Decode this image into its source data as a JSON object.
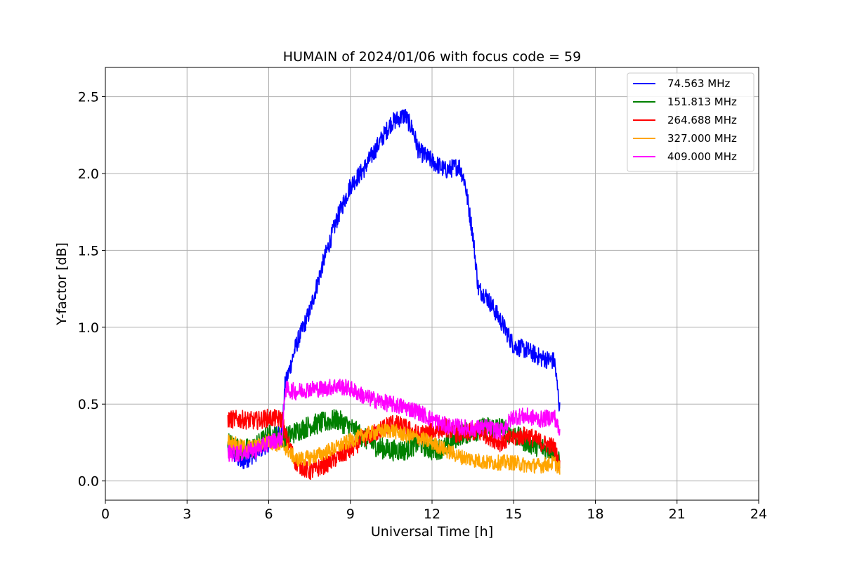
{
  "chart_data": {
    "type": "line",
    "title": "HUMAIN of 2024/01/06 with focus code = 59",
    "xlabel": "Universal Time [h]",
    "ylabel": "Y-factor [dB]",
    "xlim": [
      0,
      24
    ],
    "ylim": [
      -0.125,
      2.69
    ],
    "xticks": [
      0,
      3,
      6,
      9,
      12,
      15,
      18,
      21,
      24
    ],
    "yticks": [
      0.0,
      0.5,
      1.0,
      1.5,
      2.0,
      2.5
    ],
    "xtick_labels": [
      "0",
      "3",
      "6",
      "9",
      "12",
      "15",
      "18",
      "21",
      "24"
    ],
    "ytick_labels": [
      "0.0",
      "0.5",
      "1.0",
      "1.5",
      "2.0",
      "2.5"
    ],
    "grid": true,
    "legend_position": "top-right",
    "series": [
      {
        "name": " 74.563 MHz",
        "color": "#0000ff",
        "noise": 0.06,
        "points": [
          [
            4.5,
            0.22
          ],
          [
            5.0,
            0.12
          ],
          [
            5.5,
            0.18
          ],
          [
            6.0,
            0.25
          ],
          [
            6.5,
            0.33
          ],
          [
            6.6,
            0.62
          ],
          [
            7.0,
            0.88
          ],
          [
            7.5,
            1.1
          ],
          [
            8.0,
            1.42
          ],
          [
            8.5,
            1.7
          ],
          [
            9.0,
            1.92
          ],
          [
            9.5,
            2.03
          ],
          [
            10.0,
            2.18
          ],
          [
            10.5,
            2.33
          ],
          [
            11.0,
            2.38
          ],
          [
            11.3,
            2.28
          ],
          [
            11.5,
            2.15
          ],
          [
            12.0,
            2.08
          ],
          [
            12.5,
            2.02
          ],
          [
            13.0,
            2.05
          ],
          [
            13.2,
            1.95
          ],
          [
            13.5,
            1.6
          ],
          [
            13.7,
            1.25
          ],
          [
            14.0,
            1.2
          ],
          [
            14.5,
            1.05
          ],
          [
            15.0,
            0.88
          ],
          [
            15.5,
            0.85
          ],
          [
            16.0,
            0.8
          ],
          [
            16.5,
            0.78
          ],
          [
            16.7,
            0.45
          ]
        ]
      },
      {
        "name": "151.813 MHz",
        "color": "#008000",
        "noise": 0.07,
        "points": [
          [
            4.5,
            0.25
          ],
          [
            5.0,
            0.2
          ],
          [
            5.5,
            0.22
          ],
          [
            6.0,
            0.3
          ],
          [
            6.6,
            0.28
          ],
          [
            7.0,
            0.32
          ],
          [
            7.5,
            0.36
          ],
          [
            8.0,
            0.38
          ],
          [
            8.5,
            0.4
          ],
          [
            9.0,
            0.35
          ],
          [
            9.5,
            0.28
          ],
          [
            10.0,
            0.22
          ],
          [
            10.5,
            0.2
          ],
          [
            11.0,
            0.2
          ],
          [
            11.5,
            0.25
          ],
          [
            12.0,
            0.2
          ],
          [
            12.5,
            0.22
          ],
          [
            13.0,
            0.3
          ],
          [
            13.5,
            0.32
          ],
          [
            14.0,
            0.35
          ],
          [
            14.5,
            0.35
          ],
          [
            15.0,
            0.3
          ],
          [
            15.5,
            0.25
          ],
          [
            16.0,
            0.22
          ],
          [
            16.5,
            0.2
          ],
          [
            16.7,
            0.1
          ]
        ]
      },
      {
        "name": "264.688 MHz",
        "color": "#ff0000",
        "noise": 0.06,
        "points": [
          [
            4.5,
            0.4
          ],
          [
            5.0,
            0.4
          ],
          [
            5.5,
            0.39
          ],
          [
            6.0,
            0.41
          ],
          [
            6.5,
            0.4
          ],
          [
            6.6,
            0.3
          ],
          [
            7.0,
            0.12
          ],
          [
            7.5,
            0.06
          ],
          [
            8.0,
            0.1
          ],
          [
            8.5,
            0.15
          ],
          [
            9.0,
            0.2
          ],
          [
            9.5,
            0.28
          ],
          [
            10.0,
            0.32
          ],
          [
            10.5,
            0.38
          ],
          [
            11.0,
            0.35
          ],
          [
            11.5,
            0.3
          ],
          [
            12.0,
            0.32
          ],
          [
            12.5,
            0.35
          ],
          [
            13.0,
            0.3
          ],
          [
            13.5,
            0.32
          ],
          [
            14.0,
            0.3
          ],
          [
            14.5,
            0.25
          ],
          [
            15.0,
            0.28
          ],
          [
            15.5,
            0.3
          ],
          [
            16.0,
            0.25
          ],
          [
            16.5,
            0.22
          ],
          [
            16.7,
            0.08
          ]
        ]
      },
      {
        "name": "327.000 MHz",
        "color": "#ffa500",
        "noise": 0.05,
        "points": [
          [
            4.5,
            0.26
          ],
          [
            5.0,
            0.22
          ],
          [
            5.5,
            0.22
          ],
          [
            6.0,
            0.26
          ],
          [
            6.6,
            0.22
          ],
          [
            7.0,
            0.14
          ],
          [
            7.5,
            0.15
          ],
          [
            8.0,
            0.18
          ],
          [
            8.5,
            0.22
          ],
          [
            9.0,
            0.26
          ],
          [
            9.5,
            0.3
          ],
          [
            10.0,
            0.32
          ],
          [
            10.5,
            0.33
          ],
          [
            11.0,
            0.3
          ],
          [
            11.5,
            0.28
          ],
          [
            12.0,
            0.25
          ],
          [
            12.5,
            0.2
          ],
          [
            13.0,
            0.16
          ],
          [
            13.5,
            0.14
          ],
          [
            14.0,
            0.12
          ],
          [
            14.5,
            0.12
          ],
          [
            15.0,
            0.12
          ],
          [
            15.5,
            0.1
          ],
          [
            16.0,
            0.1
          ],
          [
            16.5,
            0.12
          ],
          [
            16.7,
            0.08
          ]
        ]
      },
      {
        "name": "409.000 MHz",
        "color": "#ff00ff",
        "noise": 0.055,
        "points": [
          [
            4.5,
            0.18
          ],
          [
            5.0,
            0.18
          ],
          [
            5.5,
            0.2
          ],
          [
            6.0,
            0.25
          ],
          [
            6.5,
            0.28
          ],
          [
            6.6,
            0.6
          ],
          [
            7.0,
            0.58
          ],
          [
            7.5,
            0.6
          ],
          [
            8.0,
            0.6
          ],
          [
            8.5,
            0.62
          ],
          [
            9.0,
            0.6
          ],
          [
            9.5,
            0.55
          ],
          [
            10.0,
            0.52
          ],
          [
            10.5,
            0.5
          ],
          [
            11.0,
            0.48
          ],
          [
            11.5,
            0.45
          ],
          [
            12.0,
            0.4
          ],
          [
            12.5,
            0.36
          ],
          [
            13.0,
            0.35
          ],
          [
            13.5,
            0.34
          ],
          [
            14.0,
            0.35
          ],
          [
            14.5,
            0.32
          ],
          [
            15.0,
            0.42
          ],
          [
            15.5,
            0.42
          ],
          [
            16.0,
            0.4
          ],
          [
            16.5,
            0.42
          ],
          [
            16.7,
            0.3
          ]
        ]
      }
    ]
  }
}
